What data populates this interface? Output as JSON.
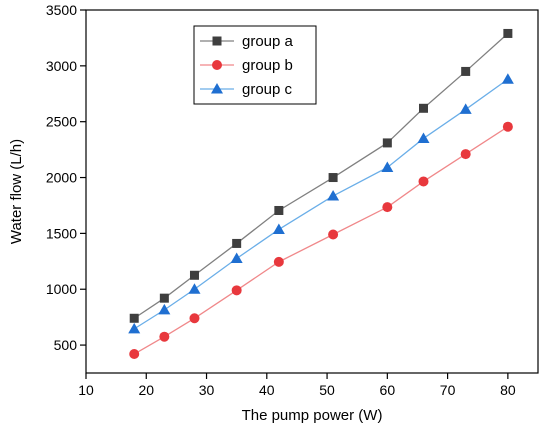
{
  "chart_data": {
    "type": "line",
    "title": "",
    "xlabel": "The pump power (W)",
    "ylabel": "Water flow (L/h)",
    "xlim": [
      10,
      85
    ],
    "ylim": [
      250,
      3500
    ],
    "xticks": [
      10,
      20,
      30,
      40,
      50,
      60,
      70,
      80
    ],
    "yticks": [
      500,
      1000,
      1500,
      2000,
      2500,
      3000,
      3500
    ],
    "grid": false,
    "legend_position": "top-left-center",
    "x": [
      18,
      23,
      28,
      35,
      42,
      51,
      60,
      66,
      73,
      80
    ],
    "series": [
      {
        "name": "group a",
        "marker": "square",
        "color": "#3f3f3f",
        "line_color": "#808080",
        "values": [
          740,
          920,
          1125,
          1410,
          1705,
          2000,
          2310,
          2620,
          2950,
          3290
        ]
      },
      {
        "name": "group b",
        "marker": "circle",
        "color": "#e8383d",
        "line_color": "#f0888a",
        "values": [
          420,
          575,
          740,
          990,
          1245,
          1490,
          1735,
          1965,
          2210,
          2455
        ]
      },
      {
        "name": "group c",
        "marker": "triangle",
        "color": "#1f6fd1",
        "line_color": "#6aaee8",
        "values": [
          645,
          815,
          1000,
          1275,
          1535,
          1835,
          2090,
          2350,
          2610,
          2880
        ]
      }
    ]
  }
}
